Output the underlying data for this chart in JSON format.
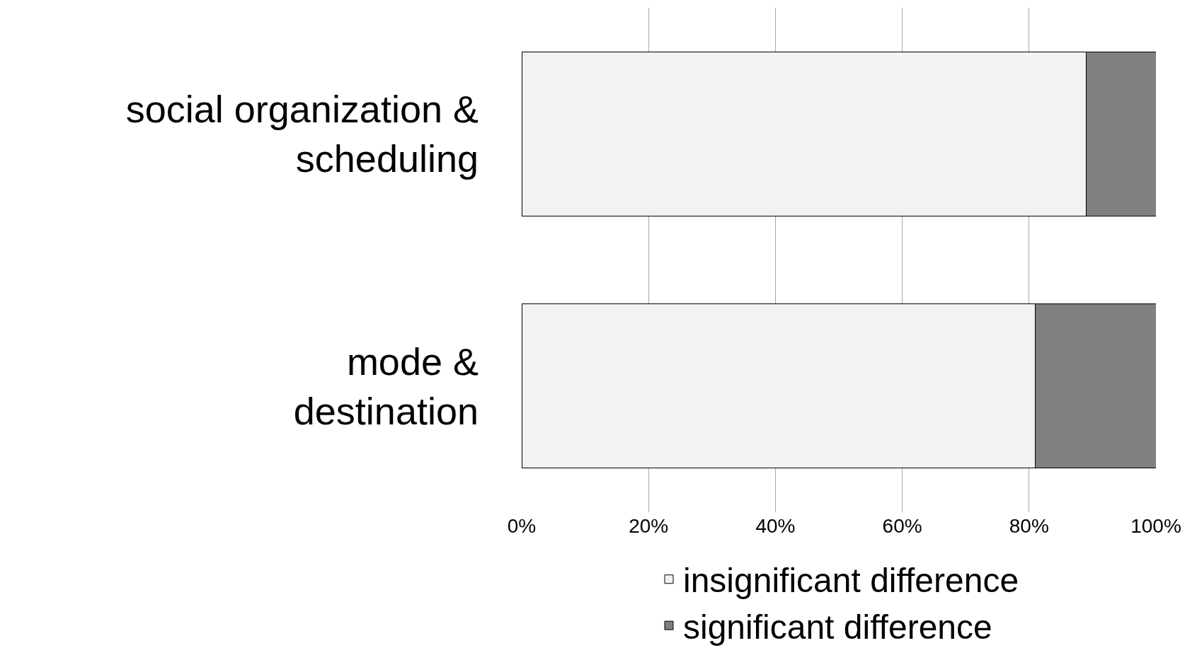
{
  "chart_data": {
    "type": "bar",
    "orientation": "horizontal",
    "stacked": true,
    "categories": [
      "social organization & scheduling",
      "mode & destination"
    ],
    "series": [
      {
        "name": "insignificant difference",
        "color": "#f2f2f2",
        "values": [
          89,
          81
        ]
      },
      {
        "name": "significant difference",
        "color": "#808080",
        "values": [
          11,
          19
        ]
      }
    ],
    "xlim": [
      0,
      100
    ],
    "xticks": [
      {
        "value": 0,
        "label": "0%"
      },
      {
        "value": 20,
        "label": "20%"
      },
      {
        "value": 40,
        "label": "40%"
      },
      {
        "value": 60,
        "label": "60%"
      },
      {
        "value": 80,
        "label": "80%"
      },
      {
        "value": 100,
        "label": "100%"
      }
    ],
    "grid": "x",
    "legend": "bottom"
  }
}
